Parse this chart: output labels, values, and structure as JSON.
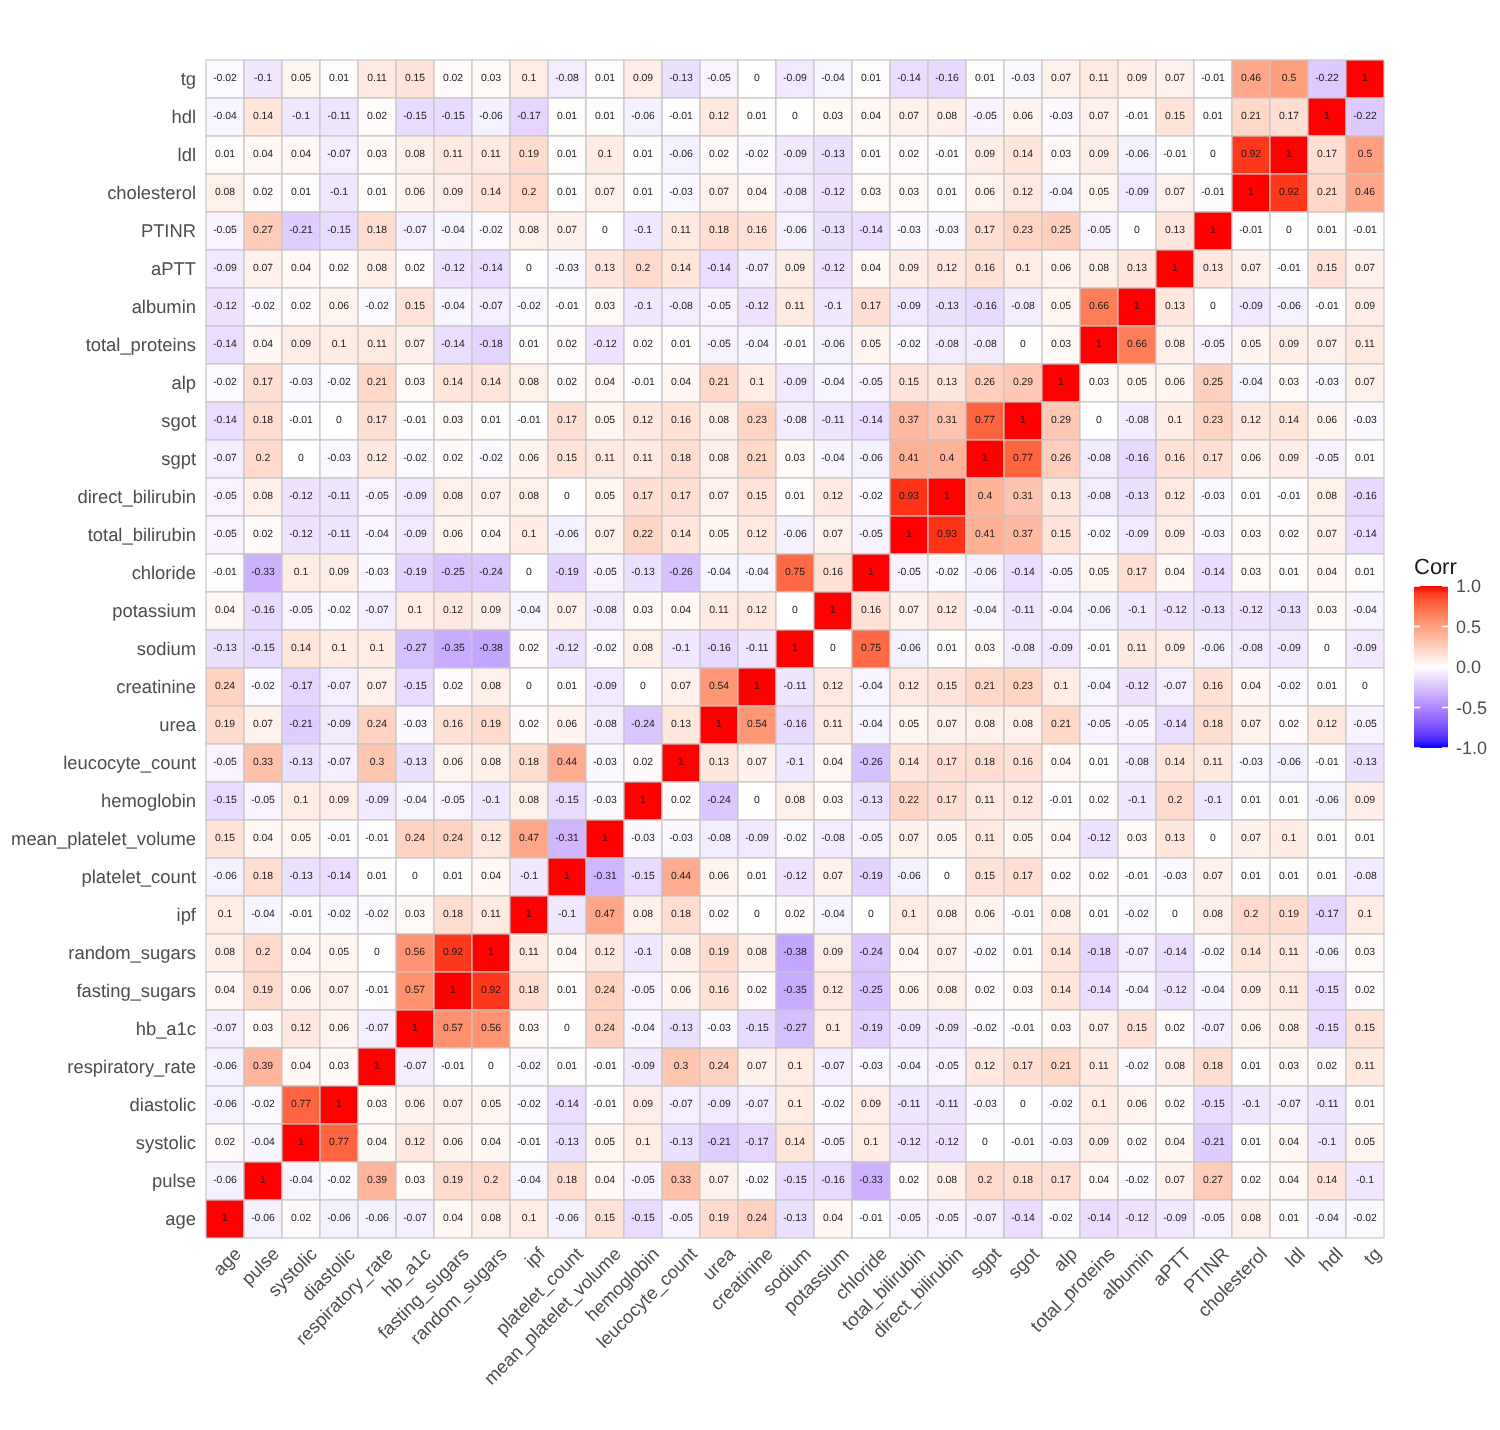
{
  "chart_data": {
    "type": "heatmap",
    "categories": [
      "age",
      "pulse",
      "systolic",
      "diastolic",
      "respiratory_rate",
      "hb_a1c",
      "fasting_sugars",
      "random_sugars",
      "ipf",
      "platelet_count",
      "mean_platelet_volume",
      "hemoglobin",
      "leucocyte_count",
      "urea",
      "creatinine",
      "sodium",
      "potassium",
      "chloride",
      "total_bilirubin",
      "direct_bilirubin",
      "sgpt",
      "sgot",
      "alp",
      "total_proteins",
      "albumin",
      "aPTT",
      "PTINR",
      "cholesterol",
      "ldl",
      "hdl",
      "tg"
    ],
    "y_categories": [
      "tg",
      "hdl",
      "ldl",
      "cholesterol",
      "PTINR",
      "aPTT",
      "albumin",
      "total_proteins",
      "alp",
      "sgot",
      "sgpt",
      "direct_bilirubin",
      "total_bilirubin",
      "chloride",
      "potassium",
      "sodium",
      "creatinine",
      "urea",
      "leucocyte_count",
      "hemoglobin",
      "mean_platelet_volume",
      "platelet_count",
      "ipf",
      "random_sugars",
      "fasting_sugars",
      "hb_a1c",
      "respiratory_rate",
      "diastolic",
      "systolic",
      "pulse",
      "age"
    ],
    "cells": [
      [
        -0.02,
        -0.1,
        0.05,
        0.01,
        0.11,
        0.15,
        0.02,
        0.03,
        0.1,
        -0.08,
        0.01,
        0.09,
        -0.13,
        -0.05,
        0,
        -0.09,
        -0.04,
        0.01,
        -0.14,
        -0.16,
        0.01,
        -0.03,
        0.07,
        0.11,
        0.09,
        0.07,
        -0.01,
        0.46,
        0.5,
        -0.22,
        1
      ],
      [
        -0.04,
        0.14,
        -0.1,
        -0.11,
        0.02,
        -0.15,
        -0.15,
        -0.06,
        -0.17,
        0.01,
        0.01,
        -0.06,
        -0.01,
        0.12,
        0.01,
        0,
        0.03,
        0.04,
        0.07,
        0.08,
        -0.05,
        0.06,
        -0.03,
        0.07,
        -0.01,
        0.15,
        0.01,
        0.21,
        0.17,
        1,
        -0.22
      ],
      [
        0.01,
        0.04,
        0.04,
        -0.07,
        0.03,
        0.08,
        0.11,
        0.11,
        0.19,
        0.01,
        0.1,
        0.01,
        -0.06,
        0.02,
        -0.02,
        -0.09,
        -0.13,
        0.01,
        0.02,
        -0.01,
        0.09,
        0.14,
        0.03,
        0.09,
        -0.06,
        -0.01,
        0,
        0.92,
        1,
        0.17,
        0.5
      ],
      [
        0.08,
        0.02,
        0.01,
        -0.1,
        0.01,
        0.06,
        0.09,
        0.14,
        0.2,
        0.01,
        0.07,
        0.01,
        -0.03,
        0.07,
        0.04,
        -0.08,
        -0.12,
        0.03,
        0.03,
        0.01,
        0.06,
        0.12,
        -0.04,
        0.05,
        -0.09,
        0.07,
        -0.01,
        1,
        0.92,
        0.21,
        0.46
      ],
      [
        -0.05,
        0.27,
        -0.21,
        -0.15,
        0.18,
        -0.07,
        -0.04,
        -0.02,
        0.08,
        0.07,
        0,
        -0.1,
        0.11,
        0.18,
        0.16,
        -0.06,
        -0.13,
        -0.14,
        -0.03,
        -0.03,
        0.17,
        0.23,
        0.25,
        -0.05,
        0,
        0.13,
        1,
        -0.01,
        0,
        0.01,
        -0.01
      ],
      [
        -0.09,
        0.07,
        0.04,
        0.02,
        0.08,
        0.02,
        -0.12,
        -0.14,
        0,
        -0.03,
        0.13,
        0.2,
        0.14,
        -0.14,
        -0.07,
        0.09,
        -0.12,
        0.04,
        0.09,
        0.12,
        0.16,
        0.1,
        0.06,
        0.08,
        0.13,
        1,
        0.13,
        0.07,
        -0.01,
        0.15,
        0.07
      ],
      [
        -0.12,
        -0.02,
        0.02,
        0.06,
        -0.02,
        0.15,
        -0.04,
        -0.07,
        -0.02,
        -0.01,
        0.03,
        -0.1,
        -0.08,
        -0.05,
        -0.12,
        0.11,
        -0.1,
        0.17,
        -0.09,
        -0.13,
        -0.16,
        -0.08,
        0.05,
        0.66,
        1,
        0.13,
        0,
        -0.09,
        -0.06,
        -0.01,
        0.09
      ],
      [
        -0.14,
        0.04,
        0.09,
        0.1,
        0.11,
        0.07,
        -0.14,
        -0.18,
        0.01,
        0.02,
        -0.12,
        0.02,
        0.01,
        -0.05,
        -0.04,
        -0.01,
        -0.06,
        0.05,
        -0.02,
        -0.08,
        -0.08,
        0,
        0.03,
        1,
        0.66,
        0.08,
        -0.05,
        0.05,
        0.09,
        0.07,
        0.11
      ],
      [
        -0.02,
        0.17,
        -0.03,
        -0.02,
        0.21,
        0.03,
        0.14,
        0.14,
        0.08,
        0.02,
        0.04,
        -0.01,
        0.04,
        0.21,
        0.1,
        -0.09,
        -0.04,
        -0.05,
        0.15,
        0.13,
        0.26,
        0.29,
        1,
        0.03,
        0.05,
        0.06,
        0.25,
        -0.04,
        0.03,
        -0.03,
        0.07
      ],
      [
        -0.14,
        0.18,
        -0.01,
        0,
        0.17,
        -0.01,
        0.03,
        0.01,
        -0.01,
        0.17,
        0.05,
        0.12,
        0.16,
        0.08,
        0.23,
        -0.08,
        -0.11,
        -0.14,
        0.37,
        0.31,
        0.77,
        1,
        0.29,
        0,
        -0.08,
        0.1,
        0.23,
        0.12,
        0.14,
        0.06,
        -0.03
      ],
      [
        -0.07,
        0.2,
        0,
        -0.03,
        0.12,
        -0.02,
        0.02,
        -0.02,
        0.06,
        0.15,
        0.11,
        0.11,
        0.18,
        0.08,
        0.21,
        0.03,
        -0.04,
        -0.06,
        0.41,
        0.4,
        1,
        0.77,
        0.26,
        -0.08,
        -0.16,
        0.16,
        0.17,
        0.06,
        0.09,
        -0.05,
        0.01
      ],
      [
        -0.05,
        0.08,
        -0.12,
        -0.11,
        -0.05,
        -0.09,
        0.08,
        0.07,
        0.08,
        0,
        0.05,
        0.17,
        0.17,
        0.07,
        0.15,
        0.01,
        0.12,
        -0.02,
        0.93,
        1,
        0.4,
        0.31,
        0.13,
        -0.08,
        -0.13,
        0.12,
        -0.03,
        0.01,
        -0.01,
        0.08,
        -0.16
      ],
      [
        -0.05,
        0.02,
        -0.12,
        -0.11,
        -0.04,
        -0.09,
        0.06,
        0.04,
        0.1,
        -0.06,
        0.07,
        0.22,
        0.14,
        0.05,
        0.12,
        -0.06,
        0.07,
        -0.05,
        1,
        0.93,
        0.41,
        0.37,
        0.15,
        -0.02,
        -0.09,
        0.09,
        -0.03,
        0.03,
        0.02,
        0.07,
        -0.14
      ],
      [
        -0.01,
        -0.33,
        0.1,
        0.09,
        -0.03,
        -0.19,
        -0.25,
        -0.24,
        0,
        -0.19,
        -0.05,
        -0.13,
        -0.26,
        -0.04,
        -0.04,
        0.75,
        0.16,
        1,
        -0.05,
        -0.02,
        -0.06,
        -0.14,
        -0.05,
        0.05,
        0.17,
        0.04,
        -0.14,
        0.03,
        0.01,
        0.04,
        0.01
      ],
      [
        0.04,
        -0.16,
        -0.05,
        -0.02,
        -0.07,
        0.1,
        0.12,
        0.09,
        -0.04,
        0.07,
        -0.08,
        0.03,
        0.04,
        0.11,
        0.12,
        0,
        1,
        0.16,
        0.07,
        0.12,
        -0.04,
        -0.11,
        -0.04,
        -0.06,
        -0.1,
        -0.12,
        -0.13,
        -0.12,
        -0.13,
        0.03,
        -0.04
      ],
      [
        -0.13,
        -0.15,
        0.14,
        0.1,
        0.1,
        -0.27,
        -0.35,
        -0.38,
        0.02,
        -0.12,
        -0.02,
        0.08,
        -0.1,
        -0.16,
        -0.11,
        1,
        0,
        0.75,
        -0.06,
        0.01,
        0.03,
        -0.08,
        -0.09,
        -0.01,
        0.11,
        0.09,
        -0.06,
        -0.08,
        -0.09,
        0,
        -0.09
      ],
      [
        0.24,
        -0.02,
        -0.17,
        -0.07,
        0.07,
        -0.15,
        0.02,
        0.08,
        0,
        0.01,
        -0.09,
        0,
        0.07,
        0.54,
        1,
        -0.11,
        0.12,
        -0.04,
        0.12,
        0.15,
        0.21,
        0.23,
        0.1,
        -0.04,
        -0.12,
        -0.07,
        0.16,
        0.04,
        -0.02,
        0.01,
        0
      ],
      [
        0.19,
        0.07,
        -0.21,
        -0.09,
        0.24,
        -0.03,
        0.16,
        0.19,
        0.02,
        0.06,
        -0.08,
        -0.24,
        0.13,
        1,
        0.54,
        -0.16,
        0.11,
        -0.04,
        0.05,
        0.07,
        0.08,
        0.08,
        0.21,
        -0.05,
        -0.05,
        -0.14,
        0.18,
        0.07,
        0.02,
        0.12,
        -0.05
      ],
      [
        -0.05,
        0.33,
        -0.13,
        -0.07,
        0.3,
        -0.13,
        0.06,
        0.08,
        0.18,
        0.44,
        -0.03,
        0.02,
        1,
        0.13,
        0.07,
        -0.1,
        0.04,
        -0.26,
        0.14,
        0.17,
        0.18,
        0.16,
        0.04,
        0.01,
        -0.08,
        0.14,
        0.11,
        -0.03,
        -0.06,
        -0.01,
        -0.13
      ],
      [
        -0.15,
        -0.05,
        0.1,
        0.09,
        -0.09,
        -0.04,
        -0.05,
        -0.1,
        0.08,
        -0.15,
        -0.03,
        1,
        0.02,
        -0.24,
        0,
        0.08,
        0.03,
        -0.13,
        0.22,
        0.17,
        0.11,
        0.12,
        -0.01,
        0.02,
        -0.1,
        0.2,
        -0.1,
        0.01,
        0.01,
        -0.06,
        0.09
      ],
      [
        0.15,
        0.04,
        0.05,
        -0.01,
        -0.01,
        0.24,
        0.24,
        0.12,
        0.47,
        -0.31,
        1,
        -0.03,
        -0.03,
        -0.08,
        -0.09,
        -0.02,
        -0.08,
        -0.05,
        0.07,
        0.05,
        0.11,
        0.05,
        0.04,
        -0.12,
        0.03,
        0.13,
        0,
        0.07,
        0.1,
        0.01,
        0.01
      ],
      [
        -0.06,
        0.18,
        -0.13,
        -0.14,
        0.01,
        0,
        0.01,
        0.04,
        -0.1,
        1,
        -0.31,
        -0.15,
        0.44,
        0.06,
        0.01,
        -0.12,
        0.07,
        -0.19,
        -0.06,
        0,
        0.15,
        0.17,
        0.02,
        0.02,
        -0.01,
        -0.03,
        0.07,
        0.01,
        0.01,
        0.01,
        -0.08
      ],
      [
        0.1,
        -0.04,
        -0.01,
        -0.02,
        -0.02,
        0.03,
        0.18,
        0.11,
        1,
        -0.1,
        0.47,
        0.08,
        0.18,
        0.02,
        0,
        0.02,
        -0.04,
        0,
        0.1,
        0.08,
        0.06,
        -0.01,
        0.08,
        0.01,
        -0.02,
        0,
        0.08,
        0.2,
        0.19,
        -0.17,
        0.1
      ],
      [
        0.08,
        0.2,
        0.04,
        0.05,
        0,
        0.56,
        0.92,
        1,
        0.11,
        0.04,
        0.12,
        -0.1,
        0.08,
        0.19,
        0.08,
        -0.38,
        0.09,
        -0.24,
        0.04,
        0.07,
        -0.02,
        0.01,
        0.14,
        -0.18,
        -0.07,
        -0.14,
        -0.02,
        0.14,
        0.11,
        -0.06,
        0.03
      ],
      [
        0.04,
        0.19,
        0.06,
        0.07,
        -0.01,
        0.57,
        1,
        0.92,
        0.18,
        0.01,
        0.24,
        -0.05,
        0.06,
        0.16,
        0.02,
        -0.35,
        0.12,
        -0.25,
        0.06,
        0.08,
        0.02,
        0.03,
        0.14,
        -0.14,
        -0.04,
        -0.12,
        -0.04,
        0.09,
        0.11,
        -0.15,
        0.02
      ],
      [
        -0.07,
        0.03,
        0.12,
        0.06,
        -0.07,
        1,
        0.57,
        0.56,
        0.03,
        0,
        0.24,
        -0.04,
        -0.13,
        -0.03,
        -0.15,
        -0.27,
        0.1,
        -0.19,
        -0.09,
        -0.09,
        -0.02,
        -0.01,
        0.03,
        0.07,
        0.15,
        0.02,
        -0.07,
        0.06,
        0.08,
        -0.15,
        0.15
      ],
      [
        -0.06,
        0.39,
        0.04,
        0.03,
        1,
        -0.07,
        -0.01,
        0,
        -0.02,
        0.01,
        -0.01,
        -0.09,
        0.3,
        0.24,
        0.07,
        0.1,
        -0.07,
        -0.03,
        -0.04,
        -0.05,
        0.12,
        0.17,
        0.21,
        0.11,
        -0.02,
        0.08,
        0.18,
        0.01,
        0.03,
        0.02,
        0.11
      ],
      [
        -0.06,
        -0.02,
        0.77,
        1,
        0.03,
        0.06,
        0.07,
        0.05,
        -0.02,
        -0.14,
        -0.01,
        0.09,
        -0.07,
        -0.09,
        -0.07,
        0.1,
        -0.02,
        0.09,
        -0.11,
        -0.11,
        -0.03,
        0,
        -0.02,
        0.1,
        0.06,
        0.02,
        -0.15,
        -0.1,
        -0.07,
        -0.11,
        0.01
      ],
      [
        0.02,
        -0.04,
        1,
        0.77,
        0.04,
        0.12,
        0.06,
        0.04,
        -0.01,
        -0.13,
        0.05,
        0.1,
        -0.13,
        -0.21,
        -0.17,
        0.14,
        -0.05,
        0.1,
        -0.12,
        -0.12,
        0,
        -0.01,
        -0.03,
        0.09,
        0.02,
        0.04,
        -0.21,
        0.01,
        0.04,
        -0.1,
        0.05
      ],
      [
        -0.06,
        1,
        -0.04,
        -0.02,
        0.39,
        0.03,
        0.19,
        0.2,
        -0.04,
        0.18,
        0.04,
        -0.05,
        0.33,
        0.07,
        -0.02,
        -0.15,
        -0.16,
        -0.33,
        0.02,
        0.08,
        0.2,
        0.18,
        0.17,
        0.04,
        -0.02,
        0.07,
        0.27,
        0.02,
        0.04,
        0.14,
        -0.1
      ],
      [
        1,
        -0.06,
        0.02,
        -0.06,
        -0.06,
        -0.07,
        0.04,
        0.08,
        0.1,
        -0.06,
        0.15,
        -0.15,
        -0.05,
        0.19,
        0.24,
        -0.13,
        0.04,
        -0.01,
        -0.05,
        -0.05,
        -0.07,
        -0.14,
        -0.02,
        -0.14,
        -0.12,
        -0.09,
        -0.05,
        0.08,
        0.01,
        -0.04,
        -0.02
      ]
    ],
    "clim": [
      -1,
      1
    ],
    "cticks": [
      {
        "value": 1,
        "label": "1.0"
      },
      {
        "value": 0.5,
        "label": "0.5"
      },
      {
        "value": 0,
        "label": "0.0"
      },
      {
        "value": -0.5,
        "label": "-0.5"
      },
      {
        "value": -1,
        "label": "-1.0"
      }
    ],
    "clabel": "Corr",
    "data_labels": true
  }
}
